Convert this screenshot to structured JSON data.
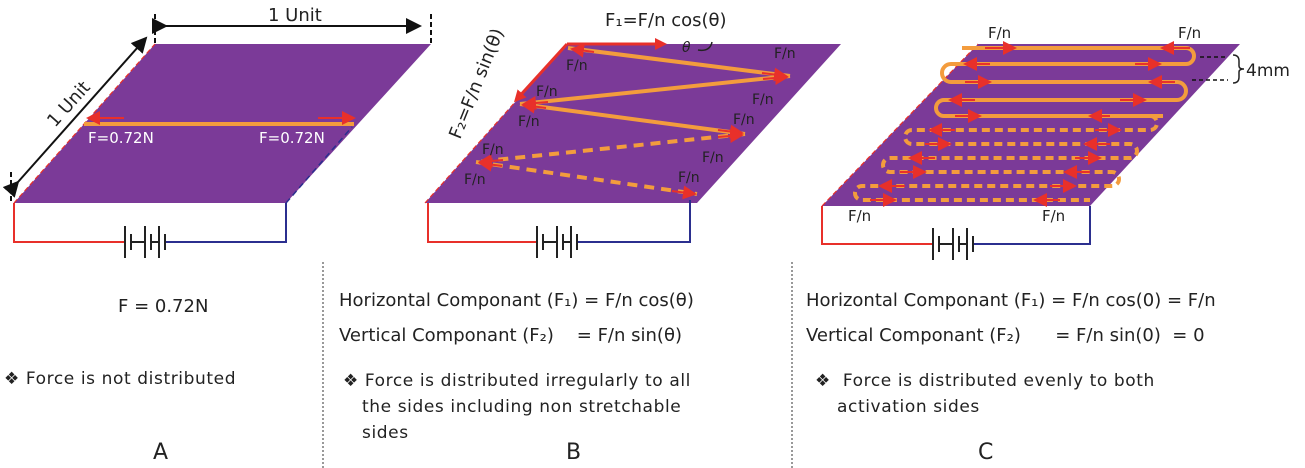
{
  "colors": {
    "sheet": "#7b3a98",
    "actuator": "#f39c3d",
    "arrow": "#e8302a",
    "wire_pos": "#e8302a",
    "wire_neg": "#2b2f8f",
    "label_light": "#ffffff",
    "label_dark": "#222222"
  },
  "panel_a": {
    "dim_top": "1 Unit",
    "dim_side": "1 Unit",
    "force_left": "F=0.72N",
    "force_right": "F=0.72N",
    "formula": "F = 0.72N",
    "bullet_symbol": "❖",
    "bullet": "Force is not distributed",
    "letter": "A"
  },
  "panel_b": {
    "f1_label": "F₁=F/n cos(θ)",
    "f2_label": "F₂=F/n sin(θ)",
    "theta_label": "θ",
    "fn_label": "F/n",
    "horiz_line": "Horizontal Componant (F₁) = F/n cos(θ)",
    "vert_line": "Vertical Componant (F₂)    = F/n sin(θ)",
    "bullet_symbol": "❖",
    "bullet_1": "Force is distributed irregularly  to all",
    "bullet_2": "the sides including non stretchable",
    "bullet_3": "sides",
    "letter": "B"
  },
  "panel_c": {
    "fn_label": "F/n",
    "spacing_label": "4mm",
    "horiz_line": "Horizontal Componant (F₁) = F/n cos(0) = F/n",
    "vert_line": "Vertical Componant (F₂)      = F/n sin(0)  = 0",
    "bullet_symbol": "❖",
    "bullet_1": "Force is distributed evenly to both",
    "bullet_2": "activation sides",
    "letter": "C"
  }
}
